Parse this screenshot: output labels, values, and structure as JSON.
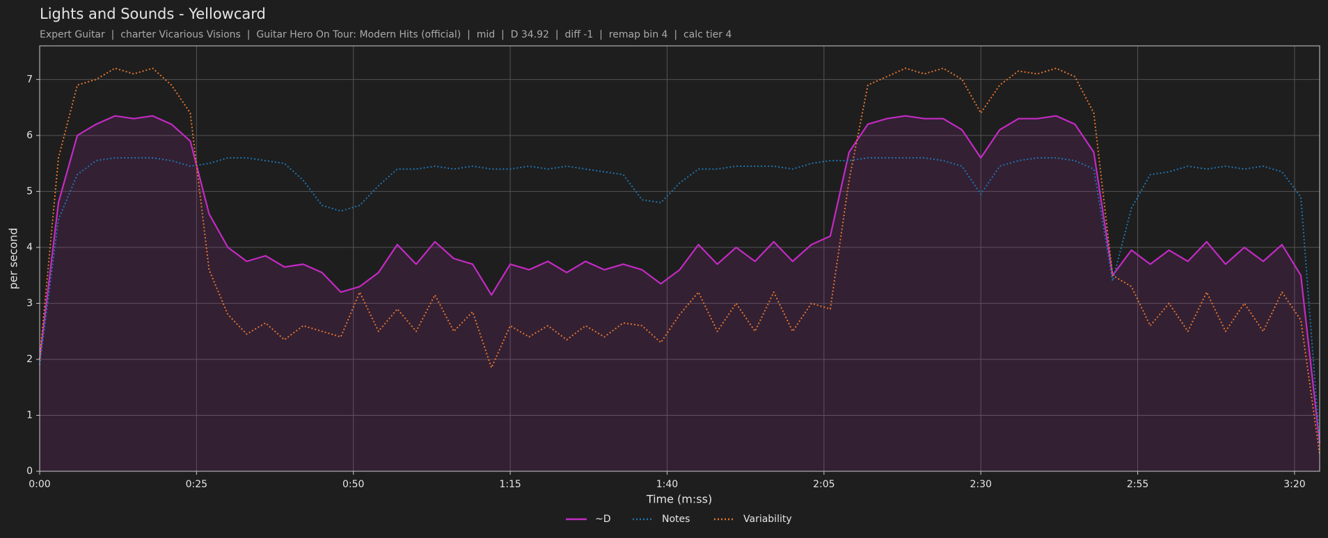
{
  "chart_data": {
    "type": "line",
    "title": "Lights and Sounds - Yellowcard",
    "subtitle": "Expert Guitar  |  charter Vicarious Visions  |  Guitar Hero On Tour: Modern Hits (official)  |  mid  |  D 34.92  |  diff -1  |  remap bin 4  |  calc tier 4",
    "xlabel": "Time (m:ss)",
    "ylabel": "per second",
    "x": [
      0,
      3,
      6,
      9,
      12,
      15,
      18,
      21,
      24,
      27,
      30,
      33,
      36,
      39,
      42,
      45,
      48,
      51,
      54,
      57,
      60,
      63,
      66,
      69,
      72,
      75,
      78,
      81,
      84,
      87,
      90,
      93,
      96,
      99,
      102,
      105,
      108,
      111,
      114,
      117,
      120,
      123,
      126,
      129,
      132,
      135,
      138,
      141,
      144,
      147,
      150,
      153,
      156,
      159,
      162,
      165,
      168,
      171,
      174,
      177,
      180,
      183,
      186,
      189,
      192,
      195,
      198,
      201,
      204
    ],
    "series": [
      {
        "name": "~D",
        "color": "#c42bc4",
        "style": "solid",
        "area": true,
        "values": [
          2.0,
          4.8,
          6.0,
          6.2,
          6.35,
          6.3,
          6.35,
          6.2,
          5.9,
          4.6,
          4.0,
          3.75,
          3.85,
          3.65,
          3.7,
          3.55,
          3.2,
          3.3,
          3.55,
          4.05,
          3.7,
          4.1,
          3.8,
          3.7,
          3.15,
          3.7,
          3.6,
          3.75,
          3.55,
          3.75,
          3.6,
          3.7,
          3.6,
          3.35,
          3.6,
          4.05,
          3.7,
          4.0,
          3.75,
          4.1,
          3.75,
          4.05,
          4.2,
          5.7,
          6.2,
          6.3,
          6.35,
          6.3,
          6.3,
          6.1,
          5.6,
          6.1,
          6.3,
          6.3,
          6.35,
          6.2,
          5.7,
          3.5,
          3.95,
          3.7,
          3.95,
          3.75,
          4.1,
          3.7,
          4.0,
          3.75,
          4.05,
          3.5,
          0.5
        ]
      },
      {
        "name": "Notes",
        "color": "#1f77b4",
        "style": "dotted",
        "values": [
          1.9,
          4.5,
          5.3,
          5.55,
          5.6,
          5.6,
          5.6,
          5.55,
          5.45,
          5.5,
          5.6,
          5.6,
          5.55,
          5.5,
          5.2,
          4.75,
          4.65,
          4.75,
          5.1,
          5.4,
          5.4,
          5.45,
          5.4,
          5.45,
          5.4,
          5.4,
          5.45,
          5.4,
          5.45,
          5.4,
          5.35,
          5.3,
          4.85,
          4.8,
          5.15,
          5.4,
          5.4,
          5.45,
          5.45,
          5.45,
          5.4,
          5.5,
          5.55,
          5.55,
          5.6,
          5.6,
          5.6,
          5.6,
          5.55,
          5.45,
          4.95,
          5.45,
          5.55,
          5.6,
          5.6,
          5.55,
          5.4,
          3.4,
          4.7,
          5.3,
          5.35,
          5.45,
          5.4,
          5.45,
          5.4,
          5.45,
          5.35,
          4.9,
          0.5
        ]
      },
      {
        "name": "Variability",
        "color": "#e8772e",
        "style": "dotted",
        "values": [
          2.0,
          5.6,
          6.9,
          7.0,
          7.2,
          7.1,
          7.2,
          6.9,
          6.4,
          3.6,
          2.8,
          2.45,
          2.65,
          2.35,
          2.6,
          2.5,
          2.4,
          3.2,
          2.5,
          2.9,
          2.5,
          3.15,
          2.5,
          2.85,
          1.85,
          2.6,
          2.4,
          2.6,
          2.35,
          2.6,
          2.4,
          2.65,
          2.6,
          2.3,
          2.8,
          3.2,
          2.5,
          3.0,
          2.5,
          3.2,
          2.5,
          3.0,
          2.9,
          5.2,
          6.9,
          7.05,
          7.2,
          7.1,
          7.2,
          7.0,
          6.4,
          6.9,
          7.15,
          7.1,
          7.2,
          7.05,
          6.4,
          3.5,
          3.3,
          2.6,
          3.0,
          2.5,
          3.2,
          2.5,
          3.0,
          2.5,
          3.2,
          2.7,
          0.3
        ]
      }
    ],
    "xlim": [
      0,
      204
    ],
    "xticks": [
      {
        "value": 0,
        "label": "0:00"
      },
      {
        "value": 25,
        "label": "0:25"
      },
      {
        "value": 50,
        "label": "0:50"
      },
      {
        "value": 75,
        "label": "1:15"
      },
      {
        "value": 100,
        "label": "1:40"
      },
      {
        "value": 125,
        "label": "2:05"
      },
      {
        "value": 150,
        "label": "2:30"
      },
      {
        "value": 175,
        "label": "2:55"
      },
      {
        "value": 200,
        "label": "3:20"
      }
    ],
    "ylim": [
      0,
      7.6
    ],
    "yticks": [
      0,
      1,
      2,
      3,
      4,
      5,
      6,
      7
    ],
    "grid": true,
    "legend": "bottom"
  }
}
